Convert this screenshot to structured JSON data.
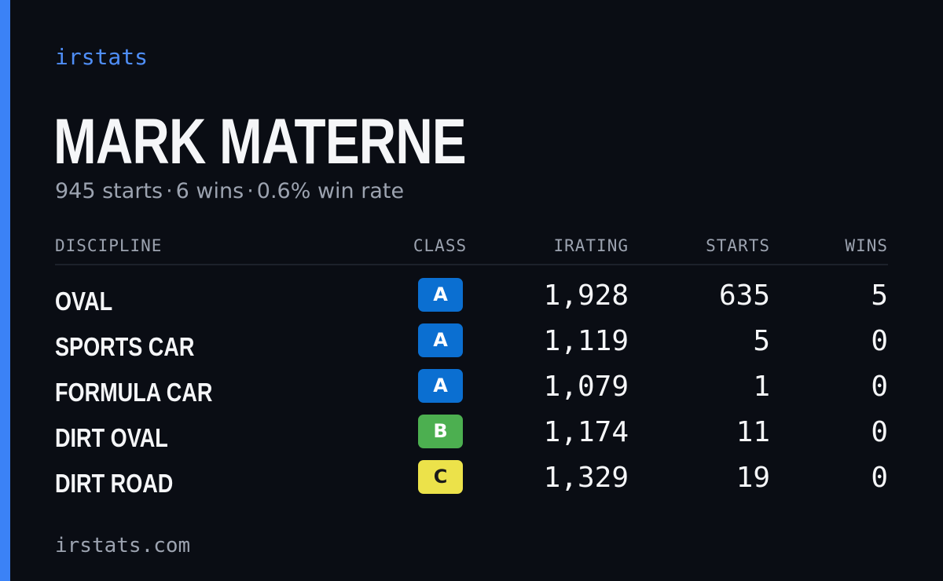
{
  "brand": "irstats",
  "player": {
    "name": "MARK MATERNE",
    "starts_text": "945 starts",
    "wins_text": "6 wins",
    "win_rate_text": "0.6% win rate",
    "separator": "·"
  },
  "table": {
    "headers": {
      "discipline": "DISCIPLINE",
      "class": "CLASS",
      "irating": "IRATING",
      "starts": "STARTS",
      "wins": "WINS"
    },
    "rows": [
      {
        "discipline": "OVAL",
        "class": "A",
        "class_bg": "#0b6fd1",
        "class_fg": "#ffffff",
        "irating": "1,928",
        "starts": "635",
        "wins": "5"
      },
      {
        "discipline": "SPORTS CAR",
        "class": "A",
        "class_bg": "#0b6fd1",
        "class_fg": "#ffffff",
        "irating": "1,119",
        "starts": "5",
        "wins": "0"
      },
      {
        "discipline": "FORMULA CAR",
        "class": "A",
        "class_bg": "#0b6fd1",
        "class_fg": "#ffffff",
        "irating": "1,079",
        "starts": "1",
        "wins": "0"
      },
      {
        "discipline": "DIRT OVAL",
        "class": "B",
        "class_bg": "#4caf50",
        "class_fg": "#ffffff",
        "irating": "1,174",
        "starts": "11",
        "wins": "0"
      },
      {
        "discipline": "DIRT ROAD",
        "class": "C",
        "class_bg": "#ece24a",
        "class_fg": "#1a1a1a",
        "irating": "1,329",
        "starts": "19",
        "wins": "0"
      }
    ]
  },
  "footer": "irstats.com",
  "colors": {
    "accent": "#3b82f6",
    "background": "#0a0d14"
  }
}
